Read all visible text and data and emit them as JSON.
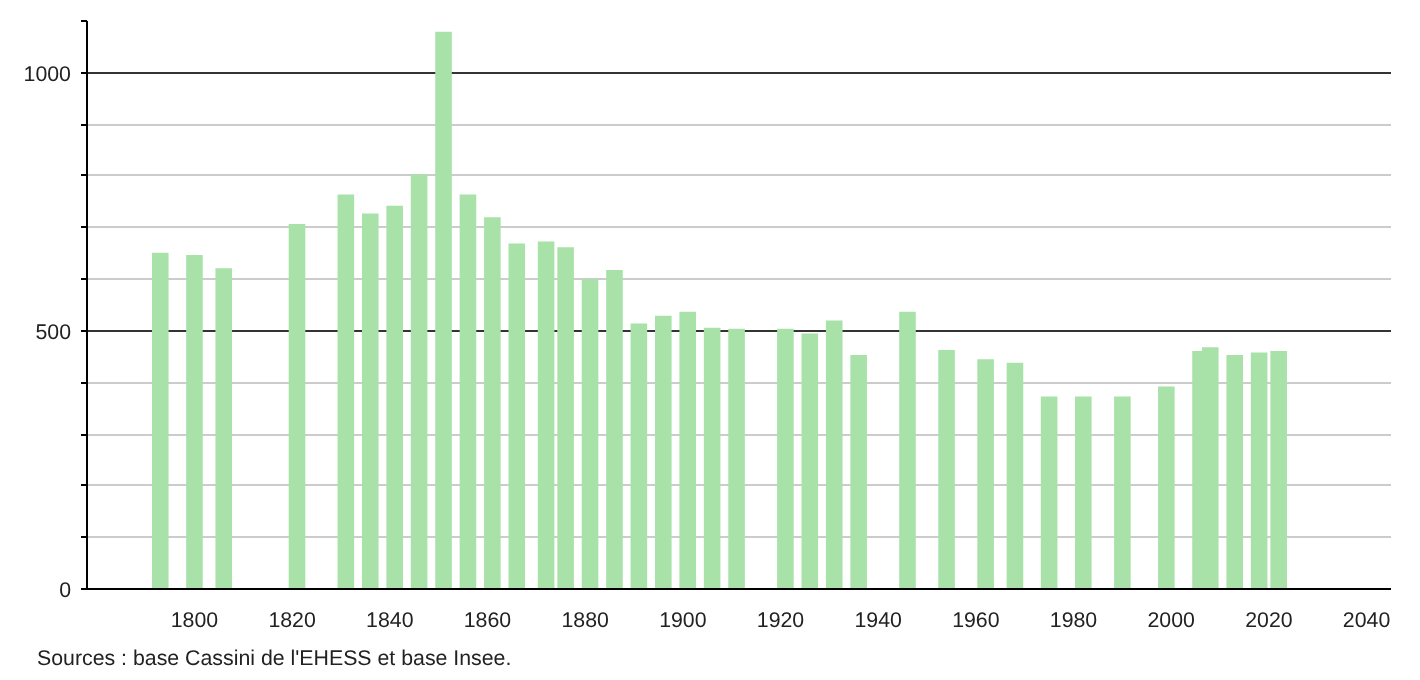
{
  "chart_data": {
    "type": "bar",
    "x": [
      1793,
      1800,
      1806,
      1821,
      1831,
      1836,
      1841,
      1846,
      1851,
      1856,
      1861,
      1866,
      1872,
      1876,
      1881,
      1886,
      1891,
      1896,
      1901,
      1906,
      1911,
      1921,
      1926,
      1931,
      1936,
      1946,
      1954,
      1962,
      1968,
      1975,
      1982,
      1990,
      1999,
      2006,
      2008,
      2013,
      2018,
      2022
    ],
    "values": [
      651,
      647,
      621,
      707,
      764,
      727,
      742,
      803,
      1079,
      764,
      720,
      669,
      673,
      662,
      600,
      618,
      514,
      529,
      537,
      506,
      504,
      504,
      495,
      520,
      453,
      537,
      463,
      445,
      438,
      373,
      373,
      373,
      392,
      461,
      468,
      453,
      458,
      461
    ],
    "color": "#a9e2a9",
    "xlim": [
      1778,
      2045
    ],
    "xticks": [
      1800,
      1820,
      1840,
      1860,
      1880,
      1900,
      1920,
      1940,
      1960,
      1980,
      2000,
      2020,
      2040
    ],
    "ylim": [
      0,
      1100
    ],
    "yticks": [
      0,
      {
        "value": 100,
        "label": null
      },
      {
        "value": 200,
        "label": null
      },
      {
        "value": 300,
        "label": null
      },
      {
        "value": 400,
        "label": null
      },
      500,
      {
        "value": 600,
        "label": null
      },
      {
        "value": 700,
        "label": null
      },
      {
        "value": 800,
        "label": null
      },
      {
        "value": 900,
        "label": null
      },
      1000,
      {
        "value": 1100,
        "label": null
      }
    ],
    "grid": "y",
    "annotations": [
      "Sources : base Cassini de l'EHESS et base Insee."
    ]
  }
}
